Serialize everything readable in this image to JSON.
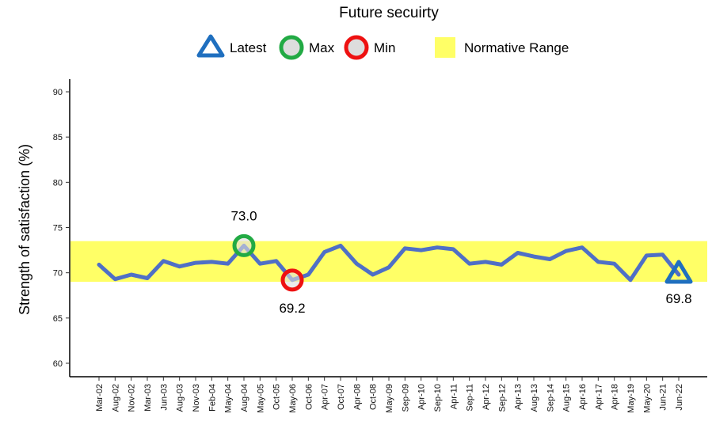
{
  "chart_data": {
    "type": "line",
    "title": "Future secuirty",
    "xlabel": "",
    "ylabel": "Strength of satisfaction (%)",
    "ylim": [
      59,
      91
    ],
    "yticks": [
      60,
      65,
      70,
      75,
      80,
      85,
      90
    ],
    "grid": false,
    "legend_position": "top",
    "legend": {
      "latest": "Latest",
      "max": "Max",
      "min": "Min",
      "normative": "Normative Range"
    },
    "normative_range": [
      69,
      73.5
    ],
    "categories": [
      "Mar-02",
      "Aug-02",
      "Nov-02",
      "Mar-03",
      "Jun-03",
      "Aug-03",
      "Nov-03",
      "Feb-04",
      "May-04",
      "Aug-04",
      "May-05",
      "Oct-05",
      "May-06",
      "Oct-06",
      "Apr-07",
      "Oct-07",
      "Apr-08",
      "Oct-08",
      "May-09",
      "Sep-09",
      "Apr-10",
      "Sep-10",
      "Apr-11",
      "Sep-11",
      "Apr-12",
      "Sep-12",
      "Apr-13",
      "Aug-13",
      "Sep-14",
      "Aug-15",
      "Apr-16",
      "Apr-17",
      "Apr-18",
      "May-19",
      "May-20",
      "Jun-21",
      "Jun-22"
    ],
    "values": [
      70.9,
      69.3,
      69.8,
      69.4,
      71.3,
      70.7,
      71.1,
      71.2,
      71.0,
      73.0,
      71.0,
      71.3,
      69.2,
      69.8,
      72.3,
      73.0,
      71.0,
      69.8,
      70.6,
      72.7,
      72.5,
      72.8,
      72.6,
      71.0,
      71.2,
      70.9,
      72.2,
      71.8,
      71.5,
      72.4,
      72.8,
      71.2,
      71.0,
      69.2,
      71.9,
      72.0,
      69.8
    ],
    "annotations": {
      "max": {
        "category": "Aug-04",
        "value": 73.0,
        "label": "73.0"
      },
      "min": {
        "category": "May-06",
        "value": 69.2,
        "label": "69.2"
      },
      "latest": {
        "category": "Jun-22",
        "value": 69.8,
        "label": "69.8"
      }
    },
    "colors": {
      "line": "#4f6fc6",
      "normative": "#ffff66",
      "latest": "#1f6fbf",
      "max": "#22aa44",
      "min": "#ee1111",
      "marker_fill": "#dddddd"
    }
  }
}
